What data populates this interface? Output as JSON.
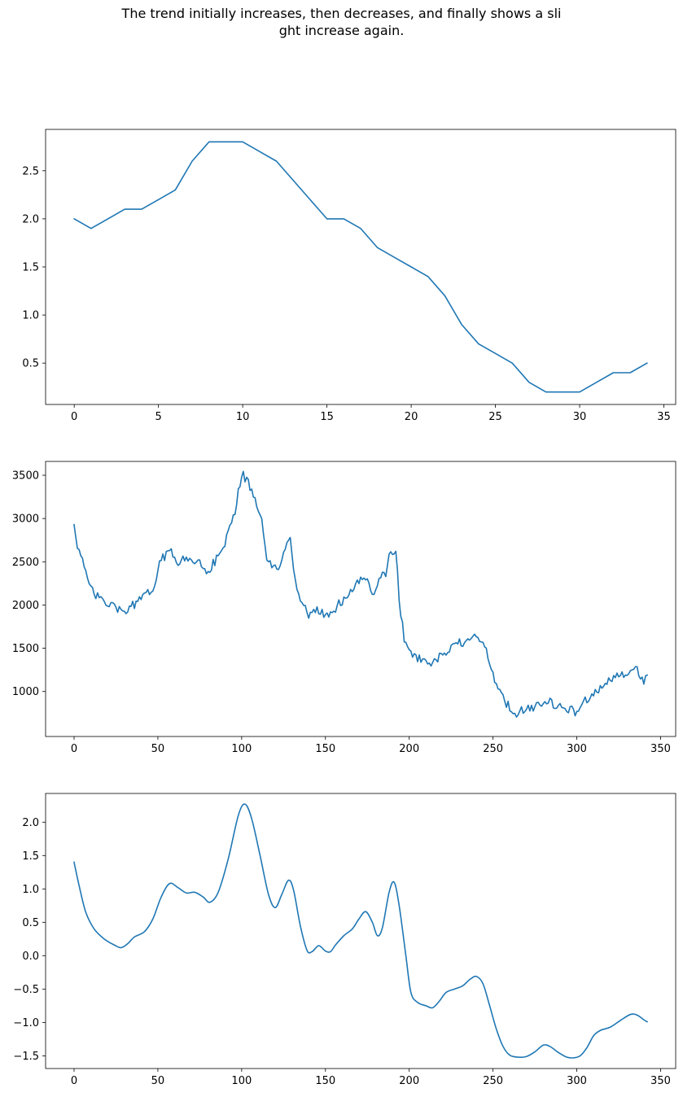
{
  "title_lines": [
    "The trend initially increases, then decreases, and finally shows a sli",
    "ght increase again."
  ],
  "line_color": "#1f77b4",
  "chart_data": [
    {
      "type": "line",
      "xlim": [
        -1.7,
        35.7
      ],
      "ylim": [
        0.07,
        2.93
      ],
      "xticks": [
        0,
        5,
        10,
        15,
        20,
        25,
        30,
        35
      ],
      "yticks": [
        0.5,
        1.0,
        1.5,
        2.0,
        2.5
      ],
      "ytick_labels": [
        "0.5",
        "1.0",
        "1.5",
        "2.0",
        "2.5"
      ],
      "x": [
        0,
        1,
        2,
        3,
        4,
        5,
        6,
        7,
        8,
        9,
        10,
        11,
        12,
        13,
        14,
        15,
        16,
        17,
        18,
        19,
        20,
        21,
        22,
        23,
        24,
        25,
        26,
        27,
        28,
        29,
        30,
        31,
        32,
        33,
        34
      ],
      "y": [
        2.0,
        1.9,
        2.0,
        2.1,
        2.1,
        2.2,
        2.3,
        2.6,
        2.8,
        2.8,
        2.8,
        2.7,
        2.6,
        2.4,
        2.2,
        2.0,
        2.0,
        1.9,
        1.7,
        1.6,
        1.5,
        1.4,
        1.2,
        0.9,
        0.7,
        0.6,
        0.5,
        0.3,
        0.2,
        0.2,
        0.2,
        0.3,
        0.4,
        0.4,
        0.5
      ]
    },
    {
      "type": "line",
      "xlim": [
        -17,
        359
      ],
      "ylim": [
        480,
        3660
      ],
      "xticks": [
        0,
        50,
        100,
        150,
        200,
        250,
        300,
        350
      ],
      "yticks": [
        1000,
        1500,
        2000,
        2500,
        3000,
        3500
      ],
      "ytick_labels": [
        "1000",
        "1500",
        "2000",
        "2500",
        "3000",
        "3500"
      ],
      "anchors": [
        [
          0,
          2930
        ],
        [
          2,
          2700
        ],
        [
          5,
          2520
        ],
        [
          8,
          2260
        ],
        [
          12,
          2130
        ],
        [
          16,
          2060
        ],
        [
          20,
          2000
        ],
        [
          25,
          1990
        ],
        [
          28,
          1900
        ],
        [
          32,
          1960
        ],
        [
          38,
          2030
        ],
        [
          44,
          2130
        ],
        [
          48,
          2240
        ],
        [
          52,
          2530
        ],
        [
          58,
          2620
        ],
        [
          62,
          2510
        ],
        [
          68,
          2520
        ],
        [
          74,
          2510
        ],
        [
          80,
          2390
        ],
        [
          85,
          2540
        ],
        [
          90,
          2720
        ],
        [
          95,
          3000
        ],
        [
          98,
          3300
        ],
        [
          101,
          3490
        ],
        [
          104,
          3420
        ],
        [
          108,
          3200
        ],
        [
          112,
          2950
        ],
        [
          115,
          2560
        ],
        [
          118,
          2420
        ],
        [
          122,
          2400
        ],
        [
          126,
          2680
        ],
        [
          129,
          2830
        ],
        [
          132,
          2260
        ],
        [
          136,
          2010
        ],
        [
          140,
          1880
        ],
        [
          145,
          1960
        ],
        [
          150,
          1870
        ],
        [
          155,
          1940
        ],
        [
          160,
          2050
        ],
        [
          165,
          2160
        ],
        [
          170,
          2260
        ],
        [
          174,
          2340
        ],
        [
          178,
          2070
        ],
        [
          182,
          2330
        ],
        [
          186,
          2350
        ],
        [
          189,
          2640
        ],
        [
          192,
          2630
        ],
        [
          194,
          2060
        ],
        [
          197,
          1600
        ],
        [
          200,
          1480
        ],
        [
          204,
          1410
        ],
        [
          210,
          1310
        ],
        [
          215,
          1340
        ],
        [
          220,
          1420
        ],
        [
          225,
          1490
        ],
        [
          230,
          1560
        ],
        [
          236,
          1580
        ],
        [
          240,
          1620
        ],
        [
          244,
          1610
        ],
        [
          248,
          1310
        ],
        [
          252,
          1100
        ],
        [
          256,
          920
        ],
        [
          260,
          820
        ],
        [
          263,
          730
        ],
        [
          267,
          790
        ],
        [
          272,
          800
        ],
        [
          276,
          850
        ],
        [
          280,
          880
        ],
        [
          285,
          870
        ],
        [
          290,
          820
        ],
        [
          295,
          790
        ],
        [
          300,
          760
        ],
        [
          305,
          900
        ],
        [
          310,
          980
        ],
        [
          315,
          1070
        ],
        [
          320,
          1120
        ],
        [
          325,
          1170
        ],
        [
          330,
          1230
        ],
        [
          334,
          1270
        ],
        [
          337,
          1230
        ],
        [
          340,
          1110
        ],
        [
          342,
          1190
        ]
      ],
      "noise": 55
    },
    {
      "type": "line",
      "xlim": [
        -17,
        359
      ],
      "ylim": [
        -1.69,
        2.43
      ],
      "xticks": [
        0,
        50,
        100,
        150,
        200,
        250,
        300,
        350
      ],
      "yticks": [
        -1.5,
        -1.0,
        -0.5,
        0.0,
        0.5,
        1.0,
        1.5,
        2.0
      ],
      "ytick_labels": [
        "−1.5",
        "−1.0",
        "−0.5",
        "0.0",
        "0.5",
        "1.0",
        "1.5",
        "2.0"
      ],
      "anchors": [
        [
          0,
          1.4
        ],
        [
          3,
          1.05
        ],
        [
          7,
          0.65
        ],
        [
          12,
          0.4
        ],
        [
          18,
          0.25
        ],
        [
          24,
          0.16
        ],
        [
          28,
          0.12
        ],
        [
          32,
          0.18
        ],
        [
          36,
          0.28
        ],
        [
          42,
          0.36
        ],
        [
          47,
          0.55
        ],
        [
          52,
          0.88
        ],
        [
          57,
          1.08
        ],
        [
          62,
          1.02
        ],
        [
          67,
          0.94
        ],
        [
          72,
          0.95
        ],
        [
          77,
          0.88
        ],
        [
          81,
          0.8
        ],
        [
          86,
          0.95
        ],
        [
          92,
          1.45
        ],
        [
          98,
          2.1
        ],
        [
          102,
          2.27
        ],
        [
          106,
          2.05
        ],
        [
          111,
          1.5
        ],
        [
          116,
          0.92
        ],
        [
          120,
          0.72
        ],
        [
          124,
          0.92
        ],
        [
          128,
          1.13
        ],
        [
          131,
          0.98
        ],
        [
          135,
          0.45
        ],
        [
          139,
          0.08
        ],
        [
          142,
          0.06
        ],
        [
          146,
          0.15
        ],
        [
          150,
          0.07
        ],
        [
          153,
          0.06
        ],
        [
          156,
          0.16
        ],
        [
          161,
          0.3
        ],
        [
          166,
          0.4
        ],
        [
          170,
          0.55
        ],
        [
          174,
          0.66
        ],
        [
          178,
          0.5
        ],
        [
          181,
          0.3
        ],
        [
          184,
          0.42
        ],
        [
          188,
          0.95
        ],
        [
          191,
          1.1
        ],
        [
          194,
          0.75
        ],
        [
          198,
          0.0
        ],
        [
          201,
          -0.55
        ],
        [
          205,
          -0.7
        ],
        [
          210,
          -0.75
        ],
        [
          214,
          -0.78
        ],
        [
          218,
          -0.68
        ],
        [
          222,
          -0.55
        ],
        [
          227,
          -0.5
        ],
        [
          232,
          -0.45
        ],
        [
          236,
          -0.36
        ],
        [
          240,
          -0.31
        ],
        [
          244,
          -0.42
        ],
        [
          248,
          -0.75
        ],
        [
          252,
          -1.1
        ],
        [
          256,
          -1.36
        ],
        [
          260,
          -1.49
        ],
        [
          265,
          -1.52
        ],
        [
          270,
          -1.51
        ],
        [
          275,
          -1.44
        ],
        [
          280,
          -1.34
        ],
        [
          284,
          -1.36
        ],
        [
          289,
          -1.45
        ],
        [
          294,
          -1.52
        ],
        [
          298,
          -1.53
        ],
        [
          302,
          -1.5
        ],
        [
          306,
          -1.38
        ],
        [
          310,
          -1.2
        ],
        [
          314,
          -1.12
        ],
        [
          320,
          -1.07
        ],
        [
          326,
          -0.97
        ],
        [
          332,
          -0.88
        ],
        [
          336,
          -0.89
        ],
        [
          340,
          -0.96
        ],
        [
          342,
          -0.99
        ]
      ]
    }
  ]
}
